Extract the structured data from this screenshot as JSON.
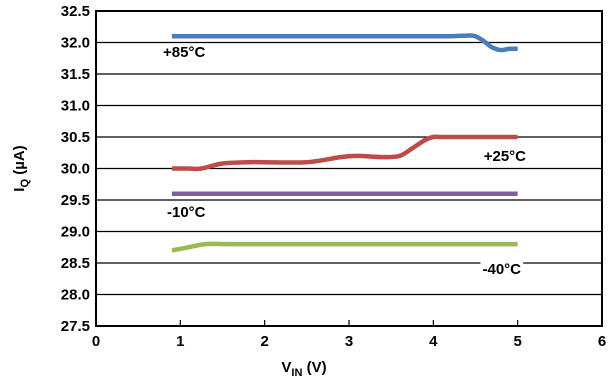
{
  "chart_data": {
    "type": "line",
    "title": "",
    "xlabel": {
      "main": "V",
      "sub": "IN",
      "unit": " (V)"
    },
    "ylabel": {
      "main": "I",
      "sub": "Q",
      "unit": " (µA)"
    },
    "xlim": [
      0,
      6
    ],
    "ylim": [
      27.5,
      32.5
    ],
    "xticks": [
      "0",
      "1",
      "2",
      "3",
      "4",
      "5",
      "6"
    ],
    "yticks": [
      "32.5",
      "32.0",
      "31.5",
      "31.0",
      "30.5",
      "30.0",
      "29.5",
      "29.0",
      "28.5",
      "28.0",
      "27.5"
    ],
    "grid": true,
    "series": [
      {
        "name": "+85°C",
        "color": "#4a7ebb",
        "x": [
          0.9,
          1.5,
          2.0,
          2.5,
          3.0,
          3.5,
          4.0,
          4.2,
          4.4,
          4.5,
          4.6,
          4.7,
          4.8,
          4.9,
          5.0
        ],
        "y": [
          32.1,
          32.1,
          32.1,
          32.1,
          32.1,
          32.1,
          32.1,
          32.1,
          32.11,
          32.1,
          32.02,
          31.92,
          31.88,
          31.9,
          31.9
        ]
      },
      {
        "name": "+25°C",
        "color": "#be4b48",
        "x": [
          0.9,
          1.1,
          1.25,
          1.5,
          1.8,
          2.0,
          2.5,
          2.9,
          3.1,
          3.4,
          3.6,
          3.75,
          3.9,
          4.0,
          4.1,
          4.3,
          4.6,
          5.0
        ],
        "y": [
          30.0,
          30.0,
          30.0,
          30.08,
          30.1,
          30.1,
          30.1,
          30.18,
          30.2,
          30.18,
          30.2,
          30.32,
          30.45,
          30.5,
          30.5,
          30.5,
          30.5,
          30.5
        ]
      },
      {
        "name": "-10°C",
        "color": "#7d60a0",
        "x": [
          0.9,
          5.0
        ],
        "y": [
          29.6,
          29.6
        ]
      },
      {
        "name": "-40°C",
        "color": "#98b954",
        "x": [
          0.9,
          1.1,
          1.3,
          1.6,
          2.0,
          3.0,
          4.0,
          5.0
        ],
        "y": [
          28.7,
          28.75,
          28.8,
          28.8,
          28.8,
          28.8,
          28.8,
          28.8
        ]
      }
    ]
  }
}
